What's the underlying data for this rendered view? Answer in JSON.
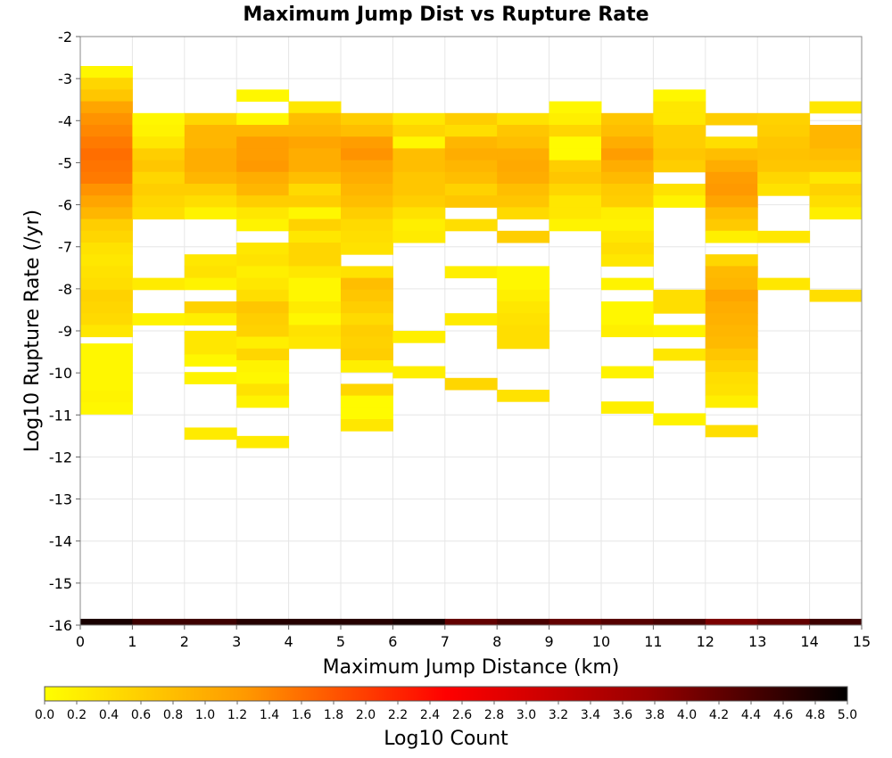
{
  "chart_data": {
    "type": "heatmap",
    "title": "Maximum Jump Dist vs Rupture Rate",
    "xlabel": "Maximum Jump Distance (km)",
    "ylabel": "Log10 Rupture Rate (/yr)",
    "xlim": [
      0,
      15
    ],
    "ylim": [
      -16,
      -2
    ],
    "x_ticks": [
      "0",
      "1",
      "2",
      "3",
      "4",
      "5",
      "6",
      "7",
      "8",
      "9",
      "10",
      "11",
      "12",
      "13",
      "14",
      "15"
    ],
    "y_ticks": [
      "-2",
      "-3",
      "-4",
      "-5",
      "-6",
      "-7",
      "-8",
      "-9",
      "-10",
      "-11",
      "-12",
      "-13",
      "-14",
      "-15",
      "-16"
    ],
    "grid": true,
    "colorbar": {
      "label": "Log10 Count",
      "range": [
        0,
        5
      ],
      "ticks": [
        "0.0",
        "0.2",
        "0.4",
        "0.6",
        "0.8",
        "1.0",
        "1.2",
        "1.4",
        "1.6",
        "1.8",
        "2.0",
        "2.2",
        "2.4",
        "2.6",
        "2.8",
        "3.0",
        "3.2",
        "3.4",
        "3.6",
        "3.8",
        "4.0",
        "4.2",
        "4.4",
        "4.6",
        "4.8",
        "5.0"
      ],
      "stops": [
        "#ffff00",
        "#ff9900",
        "#ff0000",
        "#990000",
        "#000000"
      ]
    },
    "x_bin_width": 1,
    "y_bin_height": 0.28,
    "columns": [
      {
        "x": 0,
        "cells": [
          [
            -2.7,
            0.1
          ],
          [
            -2.98,
            0.5
          ],
          [
            -3.26,
            0.7
          ],
          [
            -3.54,
            1.1
          ],
          [
            -3.82,
            1.3
          ],
          [
            -4.1,
            1.4
          ],
          [
            -4.38,
            1.5
          ],
          [
            -4.66,
            1.6
          ],
          [
            -4.94,
            1.55
          ],
          [
            -5.22,
            1.5
          ],
          [
            -5.5,
            1.3
          ],
          [
            -5.78,
            1.1
          ],
          [
            -6.06,
            0.9
          ],
          [
            -6.34,
            0.6
          ],
          [
            -6.62,
            0.5
          ],
          [
            -6.9,
            0.35
          ],
          [
            -7.18,
            0.3
          ],
          [
            -7.46,
            0.35
          ],
          [
            -7.74,
            0.4
          ],
          [
            -8.02,
            0.55
          ],
          [
            -8.3,
            0.5
          ],
          [
            -8.58,
            0.45
          ],
          [
            -8.86,
            0.3
          ],
          [
            -9.3,
            0.1
          ],
          [
            -9.58,
            0.1
          ],
          [
            -9.86,
            0.1
          ],
          [
            -10.14,
            0.1
          ],
          [
            -10.42,
            0.15
          ],
          [
            -10.7,
            0.1
          ]
        ]
      },
      {
        "x": 1,
        "cells": [
          [
            -3.82,
            0.1
          ],
          [
            -4.1,
            0.15
          ],
          [
            -4.38,
            0.3
          ],
          [
            -4.66,
            0.6
          ],
          [
            -4.94,
            0.7
          ],
          [
            -5.22,
            0.5
          ],
          [
            -5.5,
            0.6
          ],
          [
            -5.78,
            0.5
          ],
          [
            -6.06,
            0.4
          ],
          [
            -7.74,
            0.25
          ],
          [
            -8.58,
            0.15
          ]
        ]
      },
      {
        "x": 2,
        "cells": [
          [
            -3.82,
            0.5
          ],
          [
            -4.1,
            0.9
          ],
          [
            -4.38,
            0.9
          ],
          [
            -4.66,
            1.0
          ],
          [
            -4.94,
            1.0
          ],
          [
            -5.22,
            0.9
          ],
          [
            -5.5,
            0.6
          ],
          [
            -5.78,
            0.4
          ],
          [
            -6.06,
            0.15
          ],
          [
            -7.18,
            0.3
          ],
          [
            -7.46,
            0.35
          ],
          [
            -7.74,
            0.15
          ],
          [
            -8.3,
            0.55
          ],
          [
            -8.58,
            0.2
          ],
          [
            -9.0,
            0.3
          ],
          [
            -9.28,
            0.3
          ],
          [
            -9.56,
            0.1
          ],
          [
            -9.98,
            0.15
          ],
          [
            -11.3,
            0.25
          ]
        ]
      },
      {
        "x": 3,
        "cells": [
          [
            -3.26,
            0.1
          ],
          [
            -3.82,
            0.1
          ],
          [
            -4.1,
            0.9
          ],
          [
            -4.38,
            1.2
          ],
          [
            -4.66,
            1.2
          ],
          [
            -4.94,
            1.25
          ],
          [
            -5.22,
            1.0
          ],
          [
            -5.5,
            0.9
          ],
          [
            -5.78,
            0.6
          ],
          [
            -6.06,
            0.3
          ],
          [
            -6.34,
            0.15
          ],
          [
            -6.9,
            0.3
          ],
          [
            -7.18,
            0.35
          ],
          [
            -7.46,
            0.2
          ],
          [
            -7.74,
            0.3
          ],
          [
            -8.02,
            0.4
          ],
          [
            -8.3,
            0.7
          ],
          [
            -8.58,
            0.6
          ],
          [
            -8.86,
            0.55
          ],
          [
            -9.14,
            0.2
          ],
          [
            -9.42,
            0.5
          ],
          [
            -9.7,
            0.15
          ],
          [
            -9.98,
            0.1
          ],
          [
            -10.26,
            0.35
          ],
          [
            -10.54,
            0.15
          ],
          [
            -11.5,
            0.25
          ]
        ]
      },
      {
        "x": 4,
        "cells": [
          [
            -3.54,
            0.3
          ],
          [
            -3.82,
            0.8
          ],
          [
            -4.1,
            0.9
          ],
          [
            -4.38,
            1.1
          ],
          [
            -4.66,
            1.0
          ],
          [
            -4.94,
            1.0
          ],
          [
            -5.22,
            0.8
          ],
          [
            -5.5,
            0.45
          ],
          [
            -5.78,
            0.6
          ],
          [
            -6.06,
            0.1
          ],
          [
            -6.34,
            0.55
          ],
          [
            -6.62,
            0.3
          ],
          [
            -6.9,
            0.5
          ],
          [
            -7.18,
            0.5
          ],
          [
            -7.46,
            0.3
          ],
          [
            -7.74,
            0.1
          ],
          [
            -8.02,
            0.1
          ],
          [
            -8.3,
            0.25
          ],
          [
            -8.58,
            0.1
          ],
          [
            -8.86,
            0.35
          ],
          [
            -9.14,
            0.3
          ]
        ]
      },
      {
        "x": 5,
        "cells": [
          [
            -3.82,
            0.6
          ],
          [
            -4.1,
            0.8
          ],
          [
            -4.38,
            1.2
          ],
          [
            -4.66,
            1.3
          ],
          [
            -4.94,
            1.1
          ],
          [
            -5.22,
            1.0
          ],
          [
            -5.5,
            0.9
          ],
          [
            -5.78,
            0.8
          ],
          [
            -6.06,
            0.6
          ],
          [
            -6.34,
            0.45
          ],
          [
            -6.62,
            0.4
          ],
          [
            -6.9,
            0.35
          ],
          [
            -7.46,
            0.35
          ],
          [
            -7.74,
            0.8
          ],
          [
            -8.02,
            0.7
          ],
          [
            -8.3,
            0.6
          ],
          [
            -8.58,
            0.45
          ],
          [
            -8.86,
            0.6
          ],
          [
            -9.14,
            0.55
          ],
          [
            -9.42,
            0.6
          ],
          [
            -9.7,
            0.2
          ],
          [
            -10.26,
            0.5
          ],
          [
            -10.54,
            0.05
          ],
          [
            -10.82,
            0.05
          ],
          [
            -11.1,
            0.3
          ]
        ]
      },
      {
        "x": 6,
        "cells": [
          [
            -3.82,
            0.3
          ],
          [
            -4.1,
            0.5
          ],
          [
            -4.38,
            0.1
          ],
          [
            -4.66,
            0.8
          ],
          [
            -4.94,
            0.8
          ],
          [
            -5.22,
            0.7
          ],
          [
            -5.5,
            0.7
          ],
          [
            -5.78,
            0.6
          ],
          [
            -6.06,
            0.35
          ],
          [
            -6.34,
            0.2
          ],
          [
            -6.62,
            0.25
          ],
          [
            -9.0,
            0.2
          ],
          [
            -9.84,
            0.2
          ]
        ]
      },
      {
        "x": 7,
        "cells": [
          [
            -3.82,
            0.6
          ],
          [
            -4.1,
            0.4
          ],
          [
            -4.38,
            0.9
          ],
          [
            -4.66,
            1.0
          ],
          [
            -4.94,
            0.9
          ],
          [
            -5.22,
            0.8
          ],
          [
            -5.5,
            0.55
          ],
          [
            -5.78,
            0.7
          ],
          [
            -6.34,
            0.4
          ],
          [
            -7.46,
            0.2
          ],
          [
            -8.58,
            0.25
          ],
          [
            -10.12,
            0.5
          ]
        ]
      },
      {
        "x": 8,
        "cells": [
          [
            -3.82,
            0.35
          ],
          [
            -4.1,
            0.7
          ],
          [
            -4.38,
            0.8
          ],
          [
            -4.66,
            1.0
          ],
          [
            -4.94,
            1.05
          ],
          [
            -5.22,
            1.0
          ],
          [
            -5.5,
            0.8
          ],
          [
            -5.78,
            0.7
          ],
          [
            -6.06,
            0.45
          ],
          [
            -6.62,
            0.6
          ],
          [
            -7.46,
            0.1
          ],
          [
            -7.74,
            0.1
          ],
          [
            -8.02,
            0.2
          ],
          [
            -8.3,
            0.3
          ],
          [
            -8.58,
            0.35
          ],
          [
            -8.86,
            0.4
          ],
          [
            -9.14,
            0.4
          ],
          [
            -10.4,
            0.35
          ]
        ]
      },
      {
        "x": 9,
        "cells": [
          [
            -3.54,
            0.1
          ],
          [
            -3.82,
            0.2
          ],
          [
            -4.1,
            0.5
          ],
          [
            -4.38,
            0.05
          ],
          [
            -4.66,
            0.05
          ],
          [
            -4.94,
            0.6
          ],
          [
            -5.22,
            0.7
          ],
          [
            -5.5,
            0.5
          ],
          [
            -5.78,
            0.3
          ],
          [
            -6.06,
            0.3
          ],
          [
            -6.34,
            0.15
          ]
        ]
      },
      {
        "x": 10,
        "cells": [
          [
            -3.82,
            0.7
          ],
          [
            -4.1,
            0.8
          ],
          [
            -4.38,
            1.0
          ],
          [
            -4.66,
            1.2
          ],
          [
            -4.94,
            1.0
          ],
          [
            -5.22,
            0.85
          ],
          [
            -5.5,
            0.65
          ],
          [
            -5.78,
            0.6
          ],
          [
            -6.06,
            0.2
          ],
          [
            -6.34,
            0.15
          ],
          [
            -6.62,
            0.3
          ],
          [
            -6.9,
            0.4
          ],
          [
            -7.18,
            0.3
          ],
          [
            -7.74,
            0.15
          ],
          [
            -8.3,
            0.1
          ],
          [
            -8.58,
            0.1
          ],
          [
            -8.86,
            0.2
          ],
          [
            -9.84,
            0.15
          ],
          [
            -10.68,
            0.2
          ]
        ]
      },
      {
        "x": 11,
        "cells": [
          [
            -3.26,
            0.1
          ],
          [
            -3.54,
            0.3
          ],
          [
            -3.82,
            0.3
          ],
          [
            -4.1,
            0.6
          ],
          [
            -4.38,
            0.6
          ],
          [
            -4.66,
            0.7
          ],
          [
            -4.94,
            0.6
          ],
          [
            -5.5,
            0.35
          ],
          [
            -5.78,
            0.15
          ],
          [
            -8.02,
            0.4
          ],
          [
            -8.3,
            0.4
          ],
          [
            -8.86,
            0.15
          ],
          [
            -9.42,
            0.3
          ],
          [
            -10.96,
            0.15
          ]
        ]
      },
      {
        "x": 12,
        "cells": [
          [
            -3.82,
            0.6
          ],
          [
            -4.38,
            0.4
          ],
          [
            -4.66,
            0.8
          ],
          [
            -4.94,
            1.0
          ],
          [
            -5.22,
            1.2
          ],
          [
            -5.5,
            1.25
          ],
          [
            -5.78,
            1.1
          ],
          [
            -6.06,
            0.8
          ],
          [
            -6.34,
            0.65
          ],
          [
            -6.62,
            0.2
          ],
          [
            -7.18,
            0.5
          ],
          [
            -7.46,
            0.85
          ],
          [
            -7.74,
            0.9
          ],
          [
            -8.02,
            1.1
          ],
          [
            -8.3,
            1.0
          ],
          [
            -8.58,
            0.95
          ],
          [
            -8.86,
            0.9
          ],
          [
            -9.14,
            0.85
          ],
          [
            -9.42,
            0.7
          ],
          [
            -9.7,
            0.55
          ],
          [
            -9.98,
            0.4
          ],
          [
            -10.26,
            0.35
          ],
          [
            -10.54,
            0.2
          ],
          [
            -11.24,
            0.4
          ]
        ]
      },
      {
        "x": 13,
        "cells": [
          [
            -3.82,
            0.55
          ],
          [
            -4.1,
            0.6
          ],
          [
            -4.38,
            0.7
          ],
          [
            -4.66,
            0.75
          ],
          [
            -4.94,
            0.7
          ],
          [
            -5.22,
            0.5
          ],
          [
            -5.5,
            0.35
          ],
          [
            -6.62,
            0.3
          ],
          [
            -7.74,
            0.3
          ]
        ]
      },
      {
        "x": 14,
        "cells": [
          [
            -3.54,
            0.3
          ],
          [
            -4.1,
            0.9
          ],
          [
            -4.38,
            0.9
          ],
          [
            -4.66,
            0.8
          ],
          [
            -4.94,
            0.7
          ],
          [
            -5.22,
            0.3
          ],
          [
            -5.5,
            0.55
          ],
          [
            -5.78,
            0.4
          ],
          [
            -6.06,
            0.2
          ],
          [
            -8.02,
            0.4
          ]
        ]
      }
    ],
    "bottom_row": {
      "y": -16,
      "values": [
        4.8,
        4.5,
        4.5,
        4.7,
        4.7,
        4.7,
        4.8,
        4.2,
        4.4,
        4.2,
        4.3,
        4.4,
        4.0,
        4.2,
        4.5
      ]
    }
  }
}
